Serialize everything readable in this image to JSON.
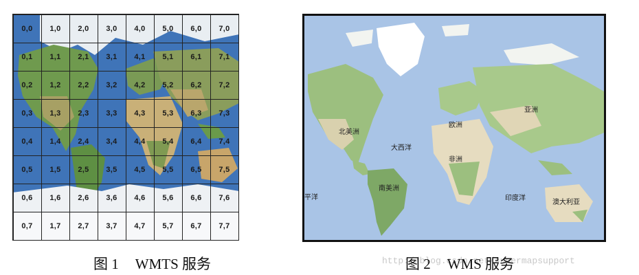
{
  "figure1": {
    "tiles": [
      "0,0",
      "1,0",
      "2,0",
      "3,0",
      "4,0",
      "5,0",
      "6,0",
      "7,0",
      "0,1",
      "1,1",
      "2,1",
      "3,1",
      "4,1",
      "5,1",
      "6,1",
      "7,1",
      "0,2",
      "1,2",
      "2,2",
      "3,2",
      "4,2",
      "5,2",
      "6,2",
      "7,2",
      "0,3",
      "1,3",
      "2,3",
      "3,3",
      "4,3",
      "5,3",
      "6,3",
      "7,3",
      "0,4",
      "1,4",
      "2,4",
      "3,4",
      "4,4",
      "5,4",
      "6,4",
      "7,4",
      "0,5",
      "1,5",
      "2,5",
      "3,5",
      "4,5",
      "5,5",
      "6,5",
      "7,5",
      "0,6",
      "1,6",
      "2,6",
      "3,6",
      "4,6",
      "5,6",
      "6,6",
      "7,6",
      "0,7",
      "1,7",
      "2,7",
      "3,7",
      "4,7",
      "5,7",
      "6,7",
      "7,7"
    ],
    "caption_num": "图 1",
    "caption_text": "WMTS 服务"
  },
  "figure2": {
    "labels": {
      "north_america": "北美洲",
      "europe": "欧洲",
      "asia": "亚洲",
      "atlantic": "大西洋",
      "africa": "非洲",
      "south_america": "南美洲",
      "pacific": "平洋",
      "indian_ocean": "印度洋",
      "australia": "澳大利亚"
    },
    "caption_num": "图 2",
    "caption_text": "WMS 服务"
  },
  "watermark": "http://blog.csdn.net/supermapsupport",
  "colors": {
    "ocean_tiles": "#3f74b8",
    "ocean_wms": "#a9c4e6",
    "land_green": "#9cbf7f",
    "land_desert": "#e6dcc0",
    "ice": "#ffffff",
    "grid_line": "#222222"
  }
}
